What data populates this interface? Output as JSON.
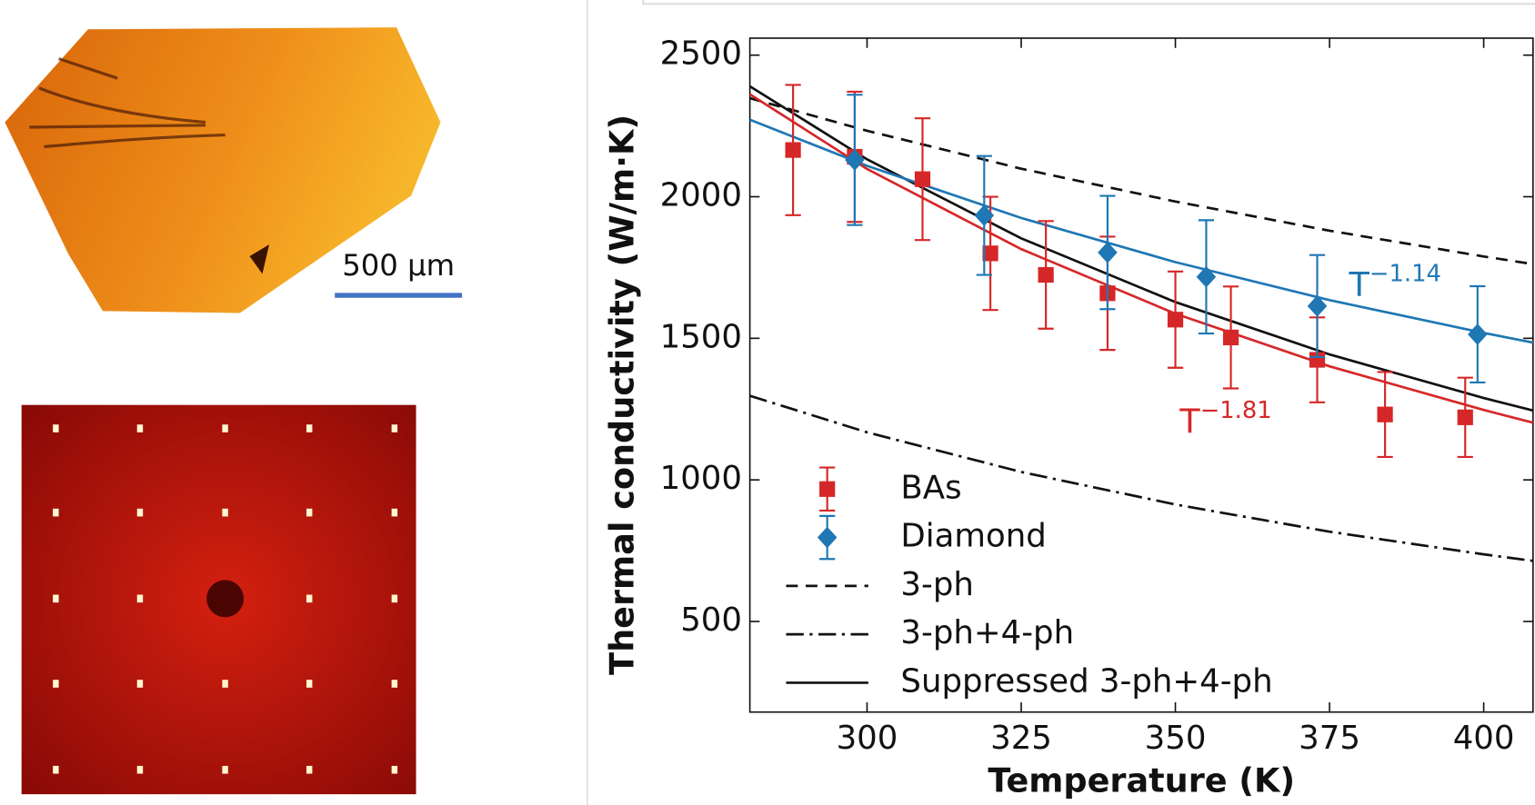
{
  "panels": {
    "scale_bar_label": "500 µm"
  },
  "chart_data": {
    "type": "line",
    "x_label": "Temperature (K)",
    "y_label": "Thermal conductivity (W/m·K)",
    "xlim": [
      281,
      408
    ],
    "ylim": [
      180,
      2560
    ],
    "xticks": [
      300,
      325,
      350,
      375,
      400
    ],
    "yticks": [
      500,
      1000,
      1500,
      2000,
      2500
    ],
    "legend": "lower left",
    "series": [
      {
        "name": "BAs",
        "color": "#d62728",
        "marker": "square",
        "x": [
          288,
          298,
          309,
          320,
          329,
          339,
          350,
          359,
          373,
          384,
          397
        ],
        "values": [
          2165,
          2141,
          2062,
          1800,
          1724,
          1659,
          1566,
          1503,
          1424,
          1231,
          1221
        ],
        "errors": [
          230,
          230,
          215,
          200,
          190,
          200,
          170,
          180,
          150,
          150,
          140
        ]
      },
      {
        "name": "Diamond",
        "color": "#1f77b4",
        "marker": "diamond",
        "x": [
          298,
          319,
          339,
          355,
          373,
          399
        ],
        "values": [
          2130,
          1934,
          1803,
          1717,
          1614,
          1514
        ],
        "errors": [
          230,
          210,
          200,
          200,
          180,
          170
        ]
      },
      {
        "name": "3-ph",
        "color": "#111111",
        "dash": "dashed",
        "x": [
          281,
          300,
          325,
          350,
          375,
          400,
          408
        ],
        "values": [
          2348,
          2233,
          2099,
          1983,
          1880,
          1789,
          1762
        ]
      },
      {
        "name": "3-ph+4-ph",
        "color": "#111111",
        "dash": "dashdot",
        "x": [
          281,
          300,
          325,
          350,
          375,
          400,
          408
        ],
        "values": [
          1297,
          1168,
          1028,
          913,
          817,
          737,
          714
        ]
      },
      {
        "name": "Suppressed 3-ph+4-ph",
        "color": "#111111",
        "dash": "solid",
        "x": [
          281,
          300,
          325,
          350,
          375,
          400,
          408
        ],
        "values": [
          2390,
          2132,
          1853,
          1628,
          1443,
          1289,
          1245
        ]
      },
      {
        "color": "#d62728",
        "dash": "solid",
        "x": [
          281,
          300,
          325,
          350,
          375,
          400,
          408
        ],
        "values": [
          2362,
          2098,
          1815,
          1587,
          1401,
          1247,
          1202
        ]
      },
      {
        "color": "#1f77b4",
        "dash": "solid",
        "x": [
          281,
          300,
          325,
          350,
          375,
          400,
          408
        ],
        "values": [
          2272,
          2109,
          1925,
          1769,
          1635,
          1519,
          1485
        ]
      }
    ],
    "annotations": [
      {
        "base": "T",
        "exponent": "−1.14",
        "color": "#1f77b4"
      },
      {
        "base": "T",
        "exponent": "−1.81",
        "color": "#d62728"
      }
    ]
  }
}
